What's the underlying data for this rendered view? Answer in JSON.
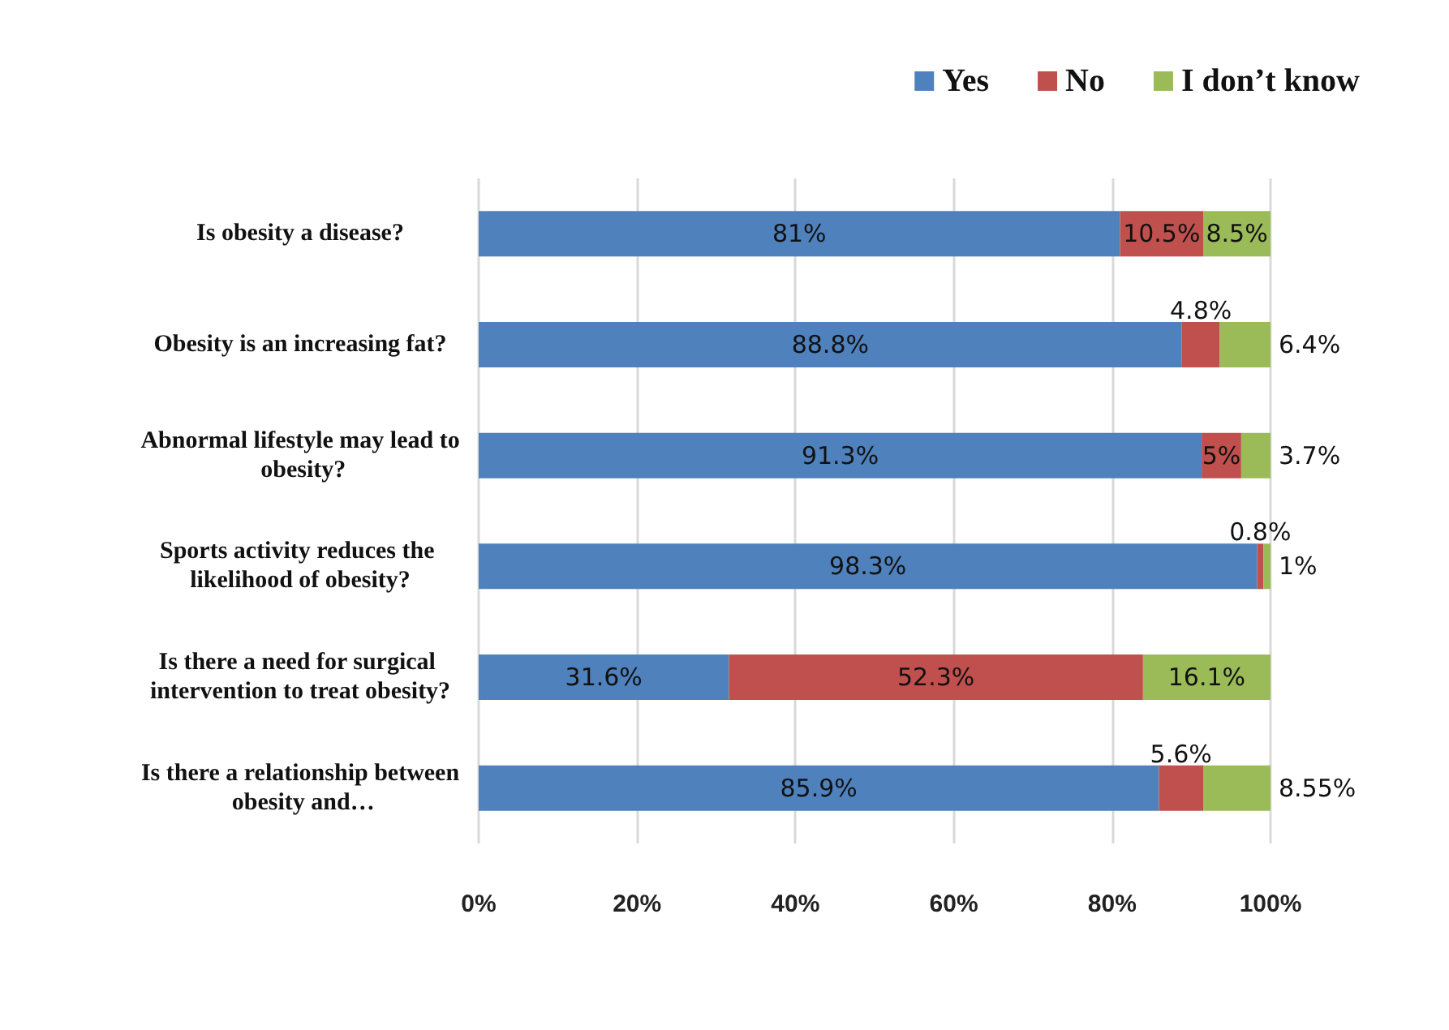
{
  "chart_data": {
    "type": "bar",
    "orientation": "horizontal",
    "stacked": true,
    "categories": [
      "Is obesity a disease?",
      "Obesity is an increasing fat?",
      "Abnormal lifestyle may lead to obesity?",
      "Sports activity reduces the likelihood of obesity?",
      "Is there a need for surgical intervention to treat obesity?",
      "Is there a relationship between obesity and…"
    ],
    "series": [
      {
        "name": "Yes",
        "color": "#4f81bd",
        "values": [
          81,
          88.8,
          91.3,
          98.3,
          31.6,
          85.9
        ],
        "value_labels": [
          "81%",
          "88.8%",
          "91.3%",
          "98.3%",
          "31.6%",
          "85.9%"
        ]
      },
      {
        "name": "No",
        "color": "#c0504d",
        "values": [
          10.5,
          4.8,
          5,
          0.8,
          52.3,
          5.6
        ],
        "value_labels": [
          "10.5%",
          "4.8%",
          "5%",
          "0.8%",
          "52.3%",
          "5.6%"
        ]
      },
      {
        "name": "I don’t know",
        "color": "#9bbb59",
        "values": [
          8.5,
          6.4,
          3.7,
          1,
          16.1,
          8.55
        ],
        "value_labels": [
          "8.5%",
          "6.4%",
          "3.7%",
          "1%",
          "16.1%",
          "8.55%"
        ]
      }
    ],
    "xlim": [
      0,
      100
    ],
    "xticks": [
      {
        "value": 0,
        "label": "0%"
      },
      {
        "value": 20,
        "label": "20%"
      },
      {
        "value": 40,
        "label": "40%"
      },
      {
        "value": 60,
        "label": "60%"
      },
      {
        "value": 80,
        "label": "80%"
      },
      {
        "value": 100,
        "label": "100%"
      }
    ],
    "grid": "x",
    "legend": "top right"
  }
}
